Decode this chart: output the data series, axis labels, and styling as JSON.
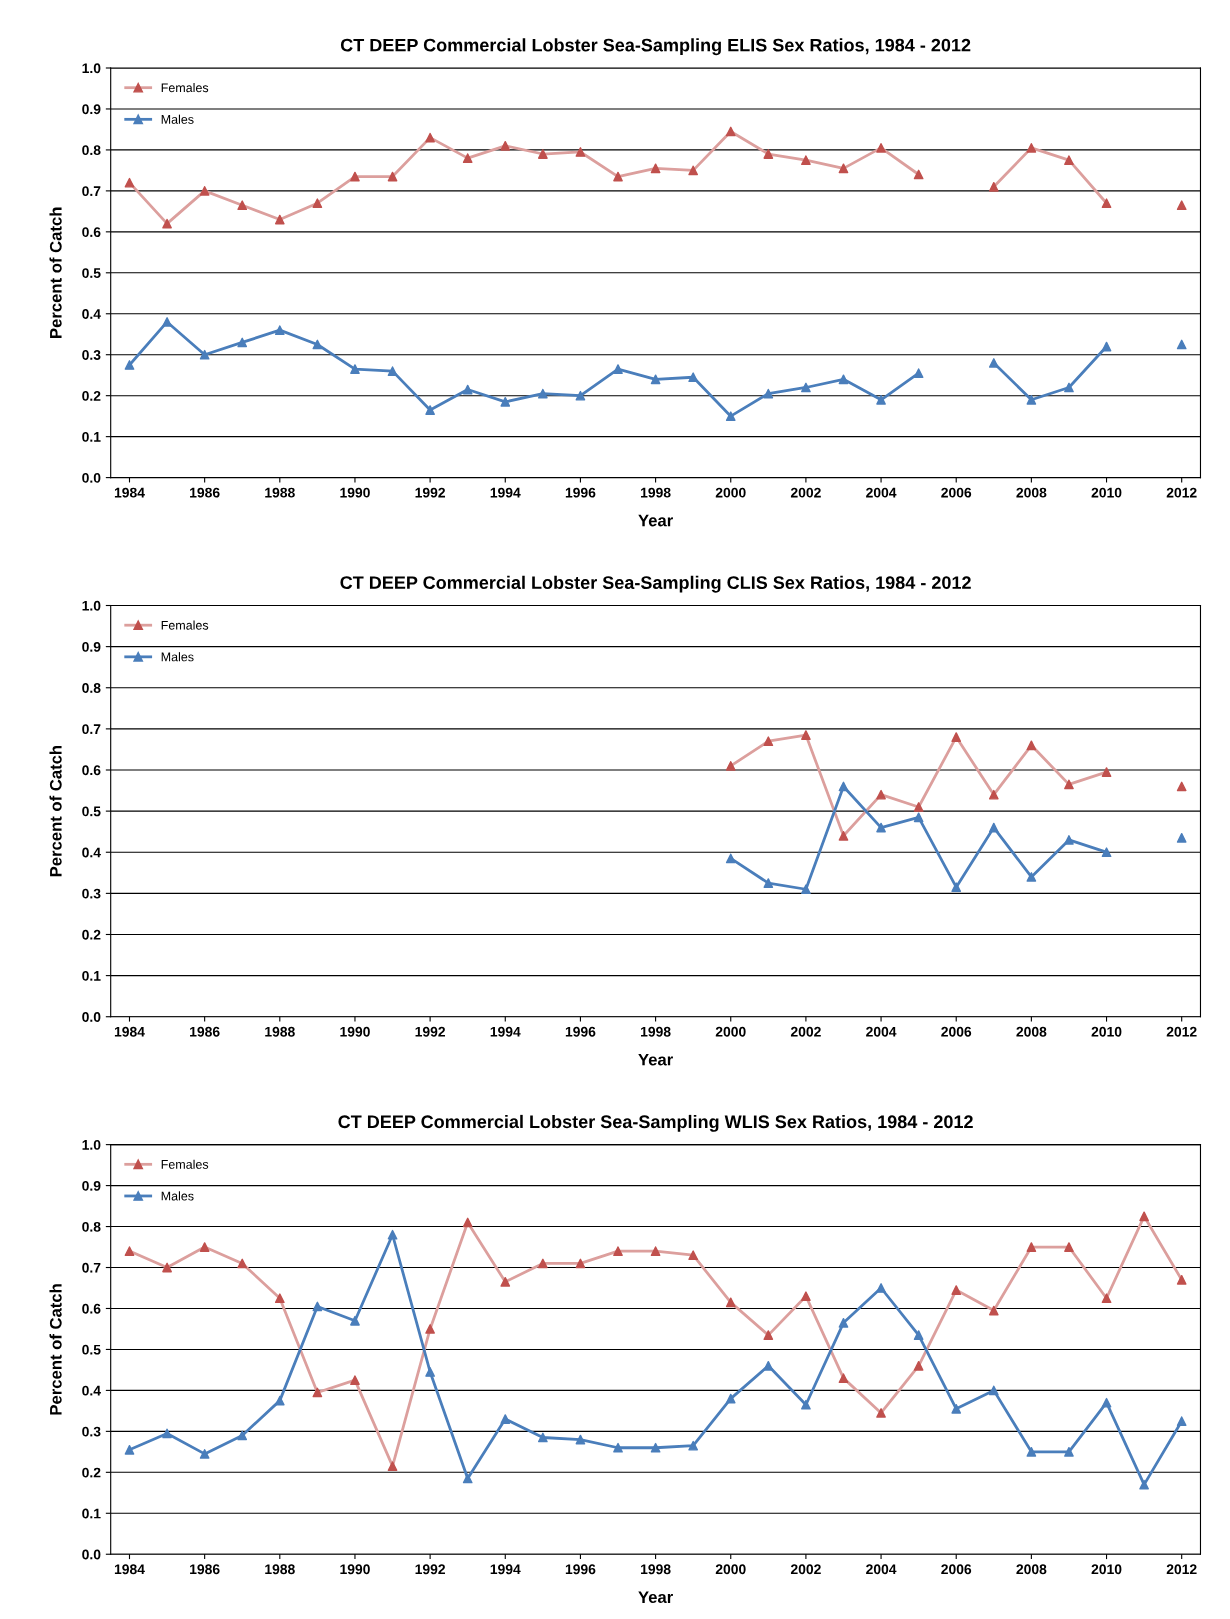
{
  "chart_data": [
    {
      "type": "line",
      "title": "CT DEEP Commercial Lobster Sea-Sampling ELIS Sex Ratios, 1984 - 2012",
      "xlabel": "Year",
      "ylabel": "Percent of Catch",
      "x": [
        1984,
        1985,
        1986,
        1987,
        1988,
        1989,
        1990,
        1991,
        1992,
        1993,
        1994,
        1995,
        1996,
        1997,
        1998,
        1999,
        2000,
        2001,
        2002,
        2003,
        2004,
        2005,
        2006,
        2007,
        2008,
        2009,
        2010,
        2011,
        2012
      ],
      "series": [
        {
          "name": "Females",
          "color": "#c0504d",
          "values": [
            0.72,
            0.62,
            0.7,
            0.665,
            0.63,
            0.67,
            0.735,
            0.735,
            0.83,
            0.78,
            0.81,
            0.79,
            0.795,
            0.735,
            0.755,
            0.75,
            0.845,
            0.79,
            0.775,
            0.755,
            0.805,
            0.74,
            null,
            0.71,
            0.805,
            0.775,
            0.67,
            null,
            0.665
          ]
        },
        {
          "name": "Males",
          "color": "#4a7ebb",
          "values": [
            0.275,
            0.38,
            0.3,
            0.33,
            0.36,
            0.325,
            0.265,
            0.26,
            0.165,
            0.215,
            0.185,
            0.205,
            0.2,
            0.265,
            0.24,
            0.245,
            0.15,
            0.205,
            0.22,
            0.24,
            0.19,
            0.255,
            null,
            0.28,
            0.19,
            0.22,
            0.32,
            null,
            0.325
          ]
        }
      ],
      "xlim": [
        1983.5,
        2012.5
      ],
      "xticks": [
        1984,
        1986,
        1988,
        1990,
        1992,
        1994,
        1996,
        1998,
        2000,
        2002,
        2004,
        2006,
        2008,
        2010,
        2012
      ],
      "ylim": [
        0,
        1
      ],
      "yticks": [
        {
          "value": 0,
          "label": "0.0"
        },
        {
          "value": 0.1,
          "label": "0.1"
        },
        {
          "value": 0.2,
          "label": "0.2"
        },
        {
          "value": 0.3,
          "label": "0.3"
        },
        {
          "value": 0.4,
          "label": "0.4"
        },
        {
          "value": 0.5,
          "label": "0.5"
        },
        {
          "value": 0.6,
          "label": "0.6"
        },
        {
          "value": 0.7,
          "label": "0.7"
        },
        {
          "value": 0.8,
          "label": "0.8"
        },
        {
          "value": 0.9,
          "label": "0.9"
        },
        {
          "value": 1,
          "label": "1.0"
        }
      ],
      "grid": "y",
      "legend": "top left",
      "marker": "triangle",
      "line_style": "solid"
    },
    {
      "type": "line",
      "title": "CT DEEP Commercial Lobster Sea-Sampling CLIS Sex Ratios, 1984 - 2012",
      "xlabel": "Year",
      "ylabel": "Percent of Catch",
      "x": [
        2000,
        2001,
        2002,
        2003,
        2004,
        2005,
        2006,
        2007,
        2008,
        2009,
        2010,
        2011,
        2012
      ],
      "series": [
        {
          "name": "Females",
          "color": "#c0504d",
          "values": [
            0.61,
            0.67,
            0.685,
            0.44,
            0.54,
            0.51,
            0.68,
            0.54,
            0.66,
            0.565,
            0.595,
            null,
            0.56
          ]
        },
        {
          "name": "Males",
          "color": "#4a7ebb",
          "values": [
            0.385,
            0.325,
            0.31,
            0.56,
            0.46,
            0.485,
            0.315,
            0.46,
            0.34,
            0.43,
            0.4,
            null,
            0.435
          ]
        }
      ],
      "xlim": [
        1983.5,
        2012.5
      ],
      "xticks": [
        1984,
        1986,
        1988,
        1990,
        1992,
        1994,
        1996,
        1998,
        2000,
        2002,
        2004,
        2006,
        2008,
        2010,
        2012
      ],
      "ylim": [
        0,
        1
      ],
      "yticks": [
        {
          "value": 0,
          "label": "0.0"
        },
        {
          "value": 0.1,
          "label": "0.1"
        },
        {
          "value": 0.2,
          "label": "0.2"
        },
        {
          "value": 0.3,
          "label": "0.3"
        },
        {
          "value": 0.4,
          "label": "0.4"
        },
        {
          "value": 0.5,
          "label": "0.5"
        },
        {
          "value": 0.6,
          "label": "0.6"
        },
        {
          "value": 0.7,
          "label": "0.7"
        },
        {
          "value": 0.8,
          "label": "0.8"
        },
        {
          "value": 0.9,
          "label": "0.9"
        },
        {
          "value": 1,
          "label": "1.0"
        }
      ],
      "grid": "y",
      "legend": "top left",
      "marker": "triangle",
      "line_style": "solid"
    },
    {
      "type": "line",
      "title": "CT DEEP Commercial Lobster Sea-Sampling WLIS Sex Ratios, 1984 - 2012",
      "xlabel": "Year",
      "ylabel": "Percent of Catch",
      "x": [
        1984,
        1985,
        1986,
        1987,
        1988,
        1989,
        1990,
        1991,
        1992,
        1993,
        1994,
        1995,
        1996,
        1997,
        1998,
        1999,
        2000,
        2001,
        2002,
        2003,
        2004,
        2005,
        2006,
        2007,
        2008,
        2009,
        2010,
        2011,
        2012
      ],
      "series": [
        {
          "name": "Females",
          "color": "#c0504d",
          "values": [
            0.74,
            0.7,
            0.75,
            0.71,
            0.625,
            0.395,
            0.425,
            0.215,
            0.55,
            0.81,
            0.665,
            0.71,
            0.71,
            0.74,
            0.74,
            0.73,
            0.615,
            0.535,
            0.63,
            0.43,
            0.345,
            0.46,
            0.645,
            0.595,
            0.75,
            0.75,
            0.625,
            0.825,
            0.67
          ]
        },
        {
          "name": "Males",
          "color": "#4a7ebb",
          "values": [
            0.255,
            0.295,
            0.245,
            0.29,
            0.375,
            0.605,
            0.57,
            0.78,
            0.445,
            0.185,
            0.33,
            0.285,
            0.28,
            0.26,
            0.26,
            0.265,
            0.38,
            0.46,
            0.365,
            0.565,
            0.65,
            0.535,
            0.355,
            0.4,
            0.25,
            0.25,
            0.37,
            0.17,
            0.325
          ]
        }
      ],
      "xlim": [
        1983.5,
        2012.5
      ],
      "xticks": [
        1984,
        1986,
        1988,
        1990,
        1992,
        1994,
        1996,
        1998,
        2000,
        2002,
        2004,
        2006,
        2008,
        2010,
        2012
      ],
      "ylim": [
        0,
        1
      ],
      "yticks": [
        {
          "value": 0,
          "label": "0.0"
        },
        {
          "value": 0.1,
          "label": "0.1"
        },
        {
          "value": 0.2,
          "label": "0.2"
        },
        {
          "value": 0.3,
          "label": "0.3"
        },
        {
          "value": 0.4,
          "label": "0.4"
        },
        {
          "value": 0.5,
          "label": "0.5"
        },
        {
          "value": 0.6,
          "label": "0.6"
        },
        {
          "value": 0.7,
          "label": "0.7"
        },
        {
          "value": 0.8,
          "label": "0.8"
        },
        {
          "value": 0.9,
          "label": "0.9"
        },
        {
          "value": 1,
          "label": "1.0"
        }
      ],
      "grid": "y",
      "legend": "top left",
      "marker": "triangle",
      "line_style": "solid"
    }
  ]
}
